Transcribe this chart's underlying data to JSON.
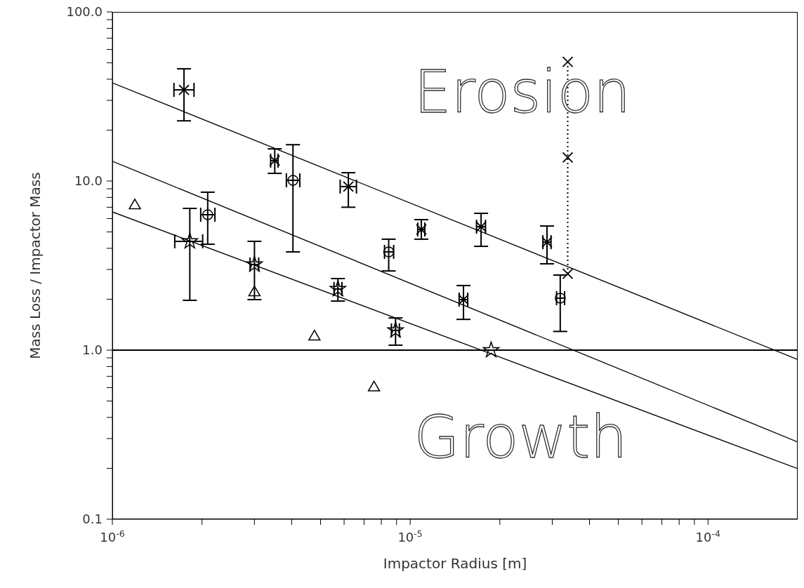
{
  "chart_data": {
    "type": "scatter",
    "xlabel": "Impactor Radius [m]",
    "ylabel": "Mass Loss / Impactor Mass",
    "log": "xy",
    "xlim": [
      1e-06,
      0.0002
    ],
    "ylim": [
      0.1,
      100
    ],
    "xticks": [
      {
        "value": 1e-06,
        "label": "10$^{-6}$"
      },
      {
        "value": 2e-06,
        "label": null
      },
      {
        "value": 3e-06,
        "label": null
      },
      {
        "value": 4e-06,
        "label": null
      },
      {
        "value": 5e-06,
        "label": null
      },
      {
        "value": 6e-06,
        "label": null
      },
      {
        "value": 7e-06,
        "label": null
      },
      {
        "value": 8e-06,
        "label": null
      },
      {
        "value": 9e-06,
        "label": null
      },
      {
        "value": 1e-05,
        "label": "10$^{-5}$"
      },
      {
        "value": 2e-05,
        "label": null
      },
      {
        "value": 3e-05,
        "label": null
      },
      {
        "value": 4e-05,
        "label": null
      },
      {
        "value": 5e-05,
        "label": null
      },
      {
        "value": 6e-05,
        "label": null
      },
      {
        "value": 7e-05,
        "label": null
      },
      {
        "value": 8e-05,
        "label": null
      },
      {
        "value": 9e-05,
        "label": null
      },
      {
        "value": 0.0001,
        "label": "10$^{-4}$"
      }
    ],
    "yticks": [
      {
        "value": 0.1,
        "label": "0.1"
      },
      {
        "value": 0.2,
        "label": null
      },
      {
        "value": 0.3,
        "label": null
      },
      {
        "value": 0.4,
        "label": null
      },
      {
        "value": 0.5,
        "label": null
      },
      {
        "value": 0.6,
        "label": null
      },
      {
        "value": 0.7,
        "label": null
      },
      {
        "value": 0.8,
        "label": null
      },
      {
        "value": 0.9,
        "label": null
      },
      {
        "value": 1,
        "label": "1.0"
      },
      {
        "value": 2,
        "label": null
      },
      {
        "value": 3,
        "label": null
      },
      {
        "value": 4,
        "label": null
      },
      {
        "value": 5,
        "label": null
      },
      {
        "value": 6,
        "label": null
      },
      {
        "value": 7,
        "label": null
      },
      {
        "value": 8,
        "label": null
      },
      {
        "value": 9,
        "label": null
      },
      {
        "value": 10,
        "label": "10.0"
      },
      {
        "value": 20,
        "label": null
      },
      {
        "value": 30,
        "label": null
      },
      {
        "value": 40,
        "label": null
      },
      {
        "value": 50,
        "label": null
      },
      {
        "value": 60,
        "label": null
      },
      {
        "value": 70,
        "label": null
      },
      {
        "value": 80,
        "label": null
      },
      {
        "value": 90,
        "label": null
      },
      {
        "value": 100,
        "label": "100.0"
      }
    ],
    "ref_lines": [
      {
        "axis": "y",
        "value": 1,
        "color": "#000000"
      }
    ],
    "annotations": [
      "Erosion",
      "Growth"
    ],
    "series": [
      {
        "marker": "cross",
        "color": "#000000",
        "x": [
          1.74e-06,
          3.51e-06,
          6.2e-06,
          1.09e-05,
          1.73e-05,
          2.88e-05,
          1.51e-05
        ],
        "values": [
          34.6,
          13.2,
          9.27,
          5.17,
          5.37,
          4.35,
          1.99
        ],
        "errors": [
          [
            22.7,
            46.1
          ],
          [
            11.1,
            15.5
          ],
          [
            7.0,
            11.2
          ],
          [
            4.53,
            5.91
          ],
          [
            4.11,
            6.44
          ],
          [
            3.24,
            5.42
          ],
          [
            1.52,
            2.41
          ]
        ],
        "xerrors": [
          [
            1.61e-06,
            1.88e-06
          ],
          [
            3.4e-06,
            3.6e-06
          ],
          [
            5.82e-06,
            6.6e-06
          ],
          [
            1.06e-05,
            1.12e-05
          ],
          [
            1.67e-05,
            1.79e-05
          ],
          [
            2.79e-05,
            2.97e-05
          ],
          [
            1.46e-05,
            1.56e-05
          ]
        ]
      },
      {
        "marker": "circle",
        "color": "#000000",
        "x": [
          2.09e-06,
          4.04e-06,
          8.47e-06,
          3.19e-05
        ],
        "values": [
          6.32,
          10.1,
          3.81,
          2.03
        ],
        "errors": [
          [
            4.23,
            8.59
          ],
          [
            3.81,
            16.4
          ],
          [
            2.94,
            4.53
          ],
          [
            1.29,
            2.78
          ]
        ],
        "xerrors": [
          [
            1.98e-06,
            2.21e-06
          ],
          [
            3.84e-06,
            4.26e-06
          ],
          [
            8.2e-06,
            8.8e-06
          ],
          [
            3.1e-05,
            3.3e-05
          ]
        ]
      },
      {
        "marker": "star",
        "color": "#000000",
        "x": [
          1.82e-06,
          3e-06,
          5.72e-06,
          8.93e-06,
          1.87e-05
        ],
        "values": [
          4.4,
          3.21,
          2.3,
          1.31,
          1.0
        ],
        "errors": [
          [
            1.97,
            6.89
          ],
          [
            1.99,
            4.4
          ],
          [
            1.95,
            2.65
          ],
          [
            1.07,
            1.55
          ],
          null
        ],
        "xerrors": [
          [
            1.62e-06,
            2.01e-06
          ],
          [
            2.9e-06,
            3.1e-06
          ],
          [
            5.55e-06,
            5.9e-06
          ],
          [
            8.65e-06,
            9.2e-06
          ],
          null
        ]
      },
      {
        "marker": "triangle",
        "color": "#000000",
        "x": [
          1.19e-06,
          3e-06,
          4.77e-06,
          7.56e-06
        ],
        "values": [
          7.16,
          2.19,
          1.2,
          0.6
        ]
      },
      {
        "type": "line",
        "marker": "cross",
        "line_style": "dotted",
        "color": "#000000",
        "x": [
          3.38e-05,
          3.38e-05,
          3.38e-05
        ],
        "values": [
          50.7,
          13.8,
          2.83
        ]
      },
      {
        "type": "line",
        "marker": "none",
        "line_style": "solid",
        "color": "#000000",
        "x": [
          1e-06,
          0.0002
        ],
        "values": [
          38.1,
          0.88
        ]
      },
      {
        "type": "line",
        "marker": "none",
        "line_style": "solid",
        "color": "#000000",
        "x": [
          1e-06,
          0.0002
        ],
        "values": [
          13.1,
          0.286
        ]
      },
      {
        "type": "line",
        "marker": "none",
        "line_style": "solid",
        "color": "#000000",
        "x": [
          1e-06,
          0.0002
        ],
        "values": [
          6.57,
          0.199
        ]
      }
    ]
  }
}
